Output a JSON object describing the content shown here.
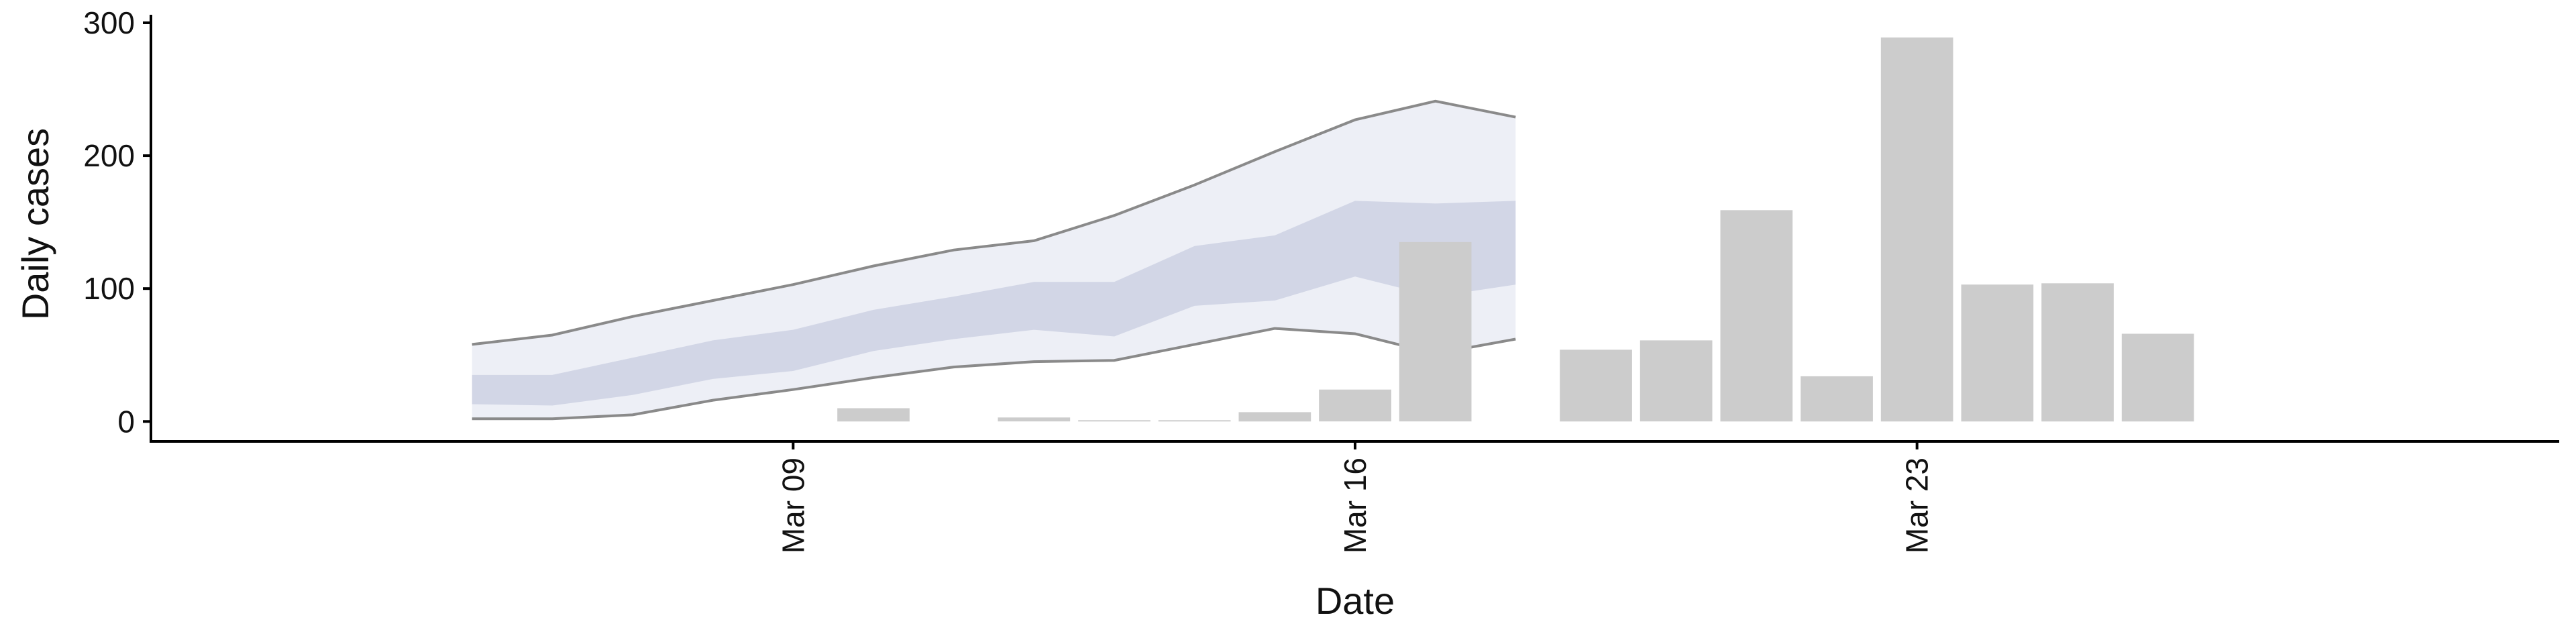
{
  "chart_data": {
    "type": "bar",
    "xlabel": "Date",
    "ylabel": "Daily cases",
    "ylim": [
      -15,
      302
    ],
    "yticks": [
      0,
      100,
      200,
      300
    ],
    "xlim": [
      "2020-03-01",
      "2020-03-31"
    ],
    "xticks": [
      {
        "date": "2020-03-09",
        "label": "Mar 09"
      },
      {
        "date": "2020-03-16",
        "label": "Mar 16"
      },
      {
        "date": "2020-03-23",
        "label": "Mar 23"
      }
    ],
    "grid": false,
    "legend": "none",
    "colors": {
      "bar": "#cccccc",
      "band_outer": "#eceef5",
      "band_inner": "#cdd1e3",
      "bound_line": "#8a8a8a",
      "axis": "#000000"
    },
    "bars": [
      {
        "x": "2020-03-10",
        "y": 10
      },
      {
        "x": "2020-03-12",
        "y": 3
      },
      {
        "x": "2020-03-13",
        "y": 1
      },
      {
        "x": "2020-03-14",
        "y": 1
      },
      {
        "x": "2020-03-15",
        "y": 7
      },
      {
        "x": "2020-03-16",
        "y": 24
      },
      {
        "x": "2020-03-17",
        "y": 135
      },
      {
        "x": "2020-03-19",
        "y": 54
      },
      {
        "x": "2020-03-20",
        "y": 61
      },
      {
        "x": "2020-03-21",
        "y": 159
      },
      {
        "x": "2020-03-22",
        "y": 34
      },
      {
        "x": "2020-03-23",
        "y": 289
      },
      {
        "x": "2020-03-24",
        "y": 103
      },
      {
        "x": "2020-03-25",
        "y": 104
      },
      {
        "x": "2020-03-26",
        "y": 66
      }
    ],
    "forecast": {
      "x": [
        "2020-03-05",
        "2020-03-06",
        "2020-03-07",
        "2020-03-08",
        "2020-03-09",
        "2020-03-10",
        "2020-03-11",
        "2020-03-12",
        "2020-03-13",
        "2020-03-14",
        "2020-03-15",
        "2020-03-16",
        "2020-03-17",
        "2020-03-18"
      ],
      "upper_90": [
        58,
        65,
        79,
        91,
        103,
        117,
        129,
        136,
        155,
        178,
        203,
        227,
        241,
        229
      ],
      "upper_50": [
        35,
        35,
        48,
        61,
        69,
        84,
        94,
        105,
        105,
        132,
        140,
        166,
        164,
        166
      ],
      "lower_50": [
        13,
        12,
        20,
        32,
        38,
        53,
        62,
        69,
        64,
        87,
        91,
        109,
        94,
        103
      ],
      "lower_90": [
        2,
        2,
        5,
        16,
        24,
        33,
        41,
        45,
        46,
        58,
        70,
        66,
        51,
        62
      ]
    }
  }
}
